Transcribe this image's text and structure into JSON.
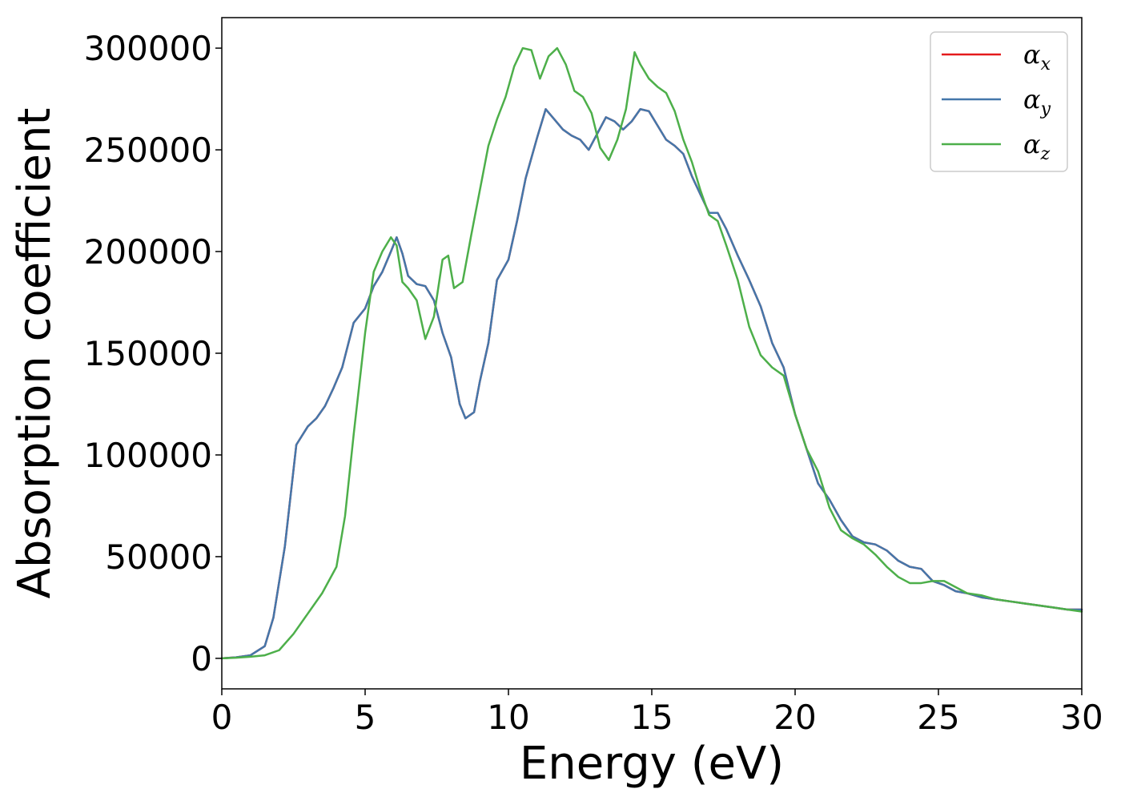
{
  "chart_data": {
    "type": "line",
    "title": "",
    "xlabel": "Energy (eV)",
    "ylabel": "Absorption coefficient",
    "xlim": [
      0,
      30
    ],
    "ylim": [
      -15000,
      315000
    ],
    "xticks": [
      0,
      5,
      10,
      15,
      20,
      25,
      30
    ],
    "xtick_labels": [
      "0",
      "5",
      "10",
      "15",
      "20",
      "25",
      "30"
    ],
    "yticks": [
      0,
      50000,
      100000,
      150000,
      200000,
      250000,
      300000
    ],
    "ytick_labels": [
      "0",
      "50000",
      "100000",
      "150000",
      "200000",
      "250000",
      "300000"
    ],
    "grid": false,
    "legend_position": "top-right",
    "series": [
      {
        "name": "α_x",
        "symbol": "α",
        "subscript": "x",
        "color": "#e41a1c",
        "x": [
          0,
          0.5,
          1,
          1.5,
          1.8,
          2.2,
          2.6,
          3.0,
          3.3,
          3.6,
          3.9,
          4.2,
          4.6,
          5.0,
          5.3,
          5.6,
          5.9,
          6.1,
          6.3,
          6.5,
          6.8,
          7.1,
          7.4,
          7.7,
          8.0,
          8.3,
          8.5,
          8.8,
          9.0,
          9.3,
          9.6,
          10.0,
          10.3,
          10.6,
          11.0,
          11.3,
          11.6,
          11.9,
          12.2,
          12.5,
          12.8,
          13.1,
          13.4,
          13.7,
          14.0,
          14.3,
          14.6,
          14.9,
          15.2,
          15.5,
          15.8,
          16.1,
          16.4,
          16.7,
          17.0,
          17.3,
          17.6,
          18.0,
          18.4,
          18.8,
          19.2,
          19.6,
          20.0,
          20.4,
          20.8,
          21.2,
          21.6,
          22.0,
          22.4,
          22.8,
          23.2,
          23.6,
          24.0,
          24.4,
          24.8,
          25.2,
          25.6,
          26.0,
          26.5,
          27.0,
          27.5,
          28.0,
          28.5,
          29.0,
          29.5,
          30.0
        ],
        "y": [
          0,
          500,
          1500,
          6000,
          20000,
          55000,
          105000,
          114000,
          118000,
          124000,
          133000,
          143000,
          165000,
          172000,
          183000,
          190000,
          200000,
          207000,
          199000,
          188000,
          184000,
          183000,
          176000,
          160000,
          148000,
          125000,
          118000,
          121000,
          136000,
          155000,
          186000,
          196000,
          215000,
          236000,
          256000,
          270000,
          265000,
          260000,
          257000,
          255000,
          250000,
          258000,
          266000,
          264000,
          260000,
          264000,
          270000,
          269000,
          262000,
          255000,
          252000,
          248000,
          237000,
          228000,
          219000,
          219000,
          211000,
          198000,
          186000,
          173000,
          155000,
          143000,
          120000,
          103000,
          86000,
          78000,
          68000,
          60000,
          57000,
          56000,
          53000,
          48000,
          45000,
          44000,
          38000,
          36000,
          33000,
          32000,
          30000,
          29000,
          28000,
          27000,
          26000,
          25000,
          24000,
          24000
        ]
      },
      {
        "name": "α_y",
        "symbol": "α",
        "subscript": "y",
        "color": "#4477aa",
        "x": [
          0,
          0.5,
          1,
          1.5,
          1.8,
          2.2,
          2.6,
          3.0,
          3.3,
          3.6,
          3.9,
          4.2,
          4.6,
          5.0,
          5.3,
          5.6,
          5.9,
          6.1,
          6.3,
          6.5,
          6.8,
          7.1,
          7.4,
          7.7,
          8.0,
          8.3,
          8.5,
          8.8,
          9.0,
          9.3,
          9.6,
          10.0,
          10.3,
          10.6,
          11.0,
          11.3,
          11.6,
          11.9,
          12.2,
          12.5,
          12.8,
          13.1,
          13.4,
          13.7,
          14.0,
          14.3,
          14.6,
          14.9,
          15.2,
          15.5,
          15.8,
          16.1,
          16.4,
          16.7,
          17.0,
          17.3,
          17.6,
          18.0,
          18.4,
          18.8,
          19.2,
          19.6,
          20.0,
          20.4,
          20.8,
          21.2,
          21.6,
          22.0,
          22.4,
          22.8,
          23.2,
          23.6,
          24.0,
          24.4,
          24.8,
          25.2,
          25.6,
          26.0,
          26.5,
          27.0,
          27.5,
          28.0,
          28.5,
          29.0,
          29.5,
          30.0
        ],
        "y": [
          0,
          500,
          1500,
          6000,
          20000,
          55000,
          105000,
          114000,
          118000,
          124000,
          133000,
          143000,
          165000,
          172000,
          183000,
          190000,
          200000,
          207000,
          199000,
          188000,
          184000,
          183000,
          176000,
          160000,
          148000,
          125000,
          118000,
          121000,
          136000,
          155000,
          186000,
          196000,
          215000,
          236000,
          256000,
          270000,
          265000,
          260000,
          257000,
          255000,
          250000,
          258000,
          266000,
          264000,
          260000,
          264000,
          270000,
          269000,
          262000,
          255000,
          252000,
          248000,
          237000,
          228000,
          219000,
          219000,
          211000,
          198000,
          186000,
          173000,
          155000,
          143000,
          120000,
          103000,
          86000,
          78000,
          68000,
          60000,
          57000,
          56000,
          53000,
          48000,
          45000,
          44000,
          38000,
          36000,
          33000,
          32000,
          30000,
          29000,
          28000,
          27000,
          26000,
          25000,
          24000,
          24000
        ]
      },
      {
        "name": "α_z",
        "symbol": "α",
        "subscript": "z",
        "color": "#4daf4a",
        "x": [
          0,
          0.5,
          1,
          1.5,
          2.0,
          2.5,
          3.0,
          3.5,
          4.0,
          4.3,
          4.6,
          5.0,
          5.3,
          5.6,
          5.9,
          6.1,
          6.3,
          6.5,
          6.8,
          7.1,
          7.4,
          7.7,
          7.9,
          8.1,
          8.4,
          8.7,
          9.0,
          9.3,
          9.6,
          9.9,
          10.2,
          10.5,
          10.8,
          11.1,
          11.4,
          11.7,
          12.0,
          12.3,
          12.6,
          12.9,
          13.2,
          13.5,
          13.8,
          14.1,
          14.4,
          14.6,
          14.9,
          15.2,
          15.5,
          15.8,
          16.1,
          16.4,
          16.7,
          17.0,
          17.3,
          17.6,
          18.0,
          18.4,
          18.8,
          19.2,
          19.6,
          20.0,
          20.4,
          20.8,
          21.2,
          21.6,
          22.0,
          22.4,
          22.8,
          23.2,
          23.6,
          24.0,
          24.4,
          24.8,
          25.2,
          25.6,
          26.0,
          26.5,
          27.0,
          27.5,
          28.0,
          28.5,
          29.0,
          29.5,
          30.0
        ],
        "y": [
          0,
          300,
          800,
          1500,
          4000,
          12000,
          22000,
          32000,
          45000,
          70000,
          110000,
          160000,
          190000,
          200000,
          207000,
          203000,
          185000,
          182000,
          176000,
          157000,
          168000,
          196000,
          198000,
          182000,
          185000,
          208000,
          230000,
          252000,
          265000,
          276000,
          291000,
          300000,
          299000,
          285000,
          296000,
          300000,
          292000,
          279000,
          276000,
          268000,
          251000,
          245000,
          255000,
          270000,
          298000,
          292000,
          285000,
          281000,
          278000,
          269000,
          255000,
          244000,
          230000,
          218000,
          215000,
          203000,
          186000,
          163000,
          149000,
          143000,
          139000,
          120000,
          103000,
          92000,
          74000,
          63000,
          59000,
          56000,
          51000,
          45000,
          40000,
          37000,
          37000,
          38000,
          38000,
          35000,
          32000,
          31000,
          29000,
          28000,
          27000,
          26000,
          25000,
          24000,
          23000
        ]
      }
    ]
  }
}
